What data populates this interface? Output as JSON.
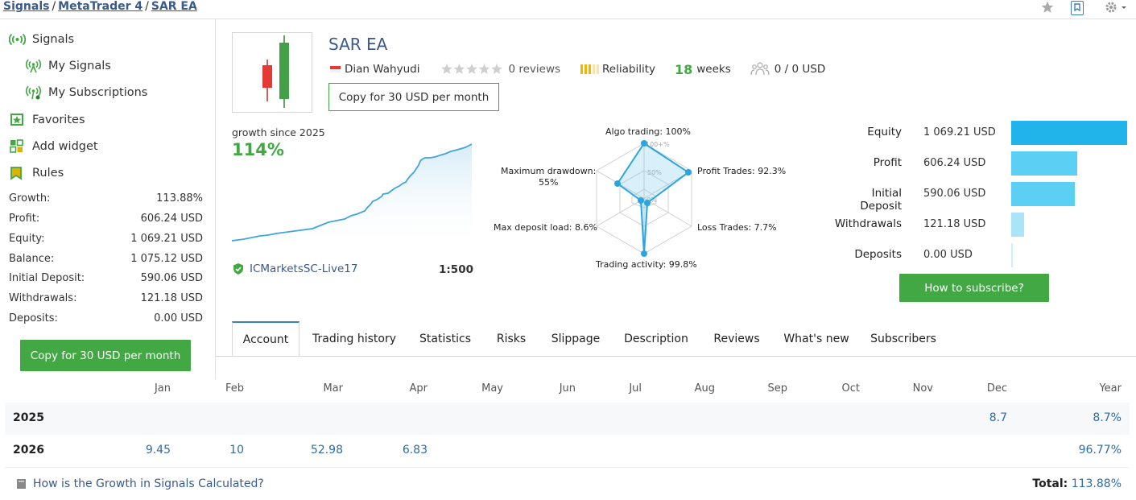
{
  "breadcrumb": [
    "Signals",
    "MetaTrader 4",
    "SAR EA"
  ],
  "header_icons": [
    "star-icon",
    "bookmark-icon",
    "gear-icon"
  ],
  "sidebar": {
    "nav": [
      {
        "label": "Signals",
        "icon": "signals-icon"
      },
      {
        "label": "My Signals",
        "icon": "my-signals-icon"
      },
      {
        "label": "My Subscriptions",
        "icon": "my-subscriptions-icon"
      },
      {
        "label": "Favorites",
        "icon": "favorites-icon"
      },
      {
        "label": "Add widget",
        "icon": "add-widget-icon"
      },
      {
        "label": "Rules",
        "icon": "rules-icon"
      }
    ],
    "stats": [
      {
        "label": "Growth:",
        "value": "113.88%"
      },
      {
        "label": "Profit:",
        "value": "606.24 USD"
      },
      {
        "label": "Equity:",
        "value": "1 069.21 USD"
      },
      {
        "label": "Balance:",
        "value": "1 075.12 USD"
      },
      {
        "label": "Initial Deposit:",
        "value": "590.06 USD"
      },
      {
        "label": "Withdrawals:",
        "value": "121.18 USD"
      },
      {
        "label": "Deposits:",
        "value": "0.00 USD"
      }
    ],
    "copy_button": "Copy for 30 USD per month"
  },
  "signal": {
    "title": "SAR EA",
    "author": "Dian Wahyudi",
    "rating_stars": 0,
    "reviews": "0 reviews",
    "reliability": "Reliability",
    "weeks_num": "18",
    "weeks_label": "weeks",
    "subscribers": "0 / 0 USD",
    "copy_button": "Copy for 30 USD per month"
  },
  "growth": {
    "label": "growth since 2025",
    "value": "114%",
    "broker": "ICMarketsSC-Live17",
    "leverage": "1:500"
  },
  "radar": {
    "axes": [
      {
        "label": "Algo trading: 100%",
        "value": 100
      },
      {
        "label": "Profit Trades: 92.3%",
        "value": 92.3
      },
      {
        "label": "Loss Trades: 7.7%",
        "value": 7.7
      },
      {
        "label": "Trading activity: 99.8%",
        "value": 99.8
      },
      {
        "label": "Max deposit load: 8.6%",
        "value": 8.6
      },
      {
        "label": "Maximum drawdown:",
        "label2": "55%",
        "value": 55
      }
    ],
    "ring_labels": [
      "100+%",
      "50%",
      "0%"
    ]
  },
  "balance_bars": [
    {
      "label": "Equity",
      "value": "1 069.21 USD",
      "amount": 1069.21,
      "color": "#20b4ea"
    },
    {
      "label": "Profit",
      "value": "606.24 USD",
      "amount": 606.24,
      "color": "#5ccff5"
    },
    {
      "label": "Initial Deposit",
      "value": "590.06 USD",
      "amount": 590.06,
      "color": "#5ccff5"
    },
    {
      "label": "Withdrawals",
      "value": "121.18 USD",
      "amount": 121.18,
      "color": "#a9e4f8"
    },
    {
      "label": "Deposits",
      "value": "0.00 USD",
      "amount": 0,
      "color": "#d2eef8"
    }
  ],
  "subscribe_button": "How to subscribe?",
  "tabs": [
    "Account",
    "Trading history",
    "Statistics",
    "Risks",
    "Slippage",
    "Description",
    "Reviews",
    "What's new",
    "Subscribers"
  ],
  "active_tab": "Account",
  "monthly": {
    "columns": [
      "Jan",
      "Feb",
      "Mar",
      "Apr",
      "May",
      "Jun",
      "Jul",
      "Aug",
      "Sep",
      "Oct",
      "Nov",
      "Dec",
      "Year"
    ],
    "rows": [
      {
        "year": "2025",
        "cells": [
          "",
          "",
          "",
          "",
          "",
          "",
          "",
          "",
          "",
          "",
          "",
          "8.7",
          "8.7%"
        ]
      },
      {
        "year": "2026",
        "cells": [
          "9.45",
          "10",
          "52.98",
          "6.83",
          "",
          "",
          "",
          "",
          "",
          "",
          "",
          "",
          "96.77%"
        ]
      }
    ],
    "help_link": "How is the Growth in Signals Calculated?",
    "total_label": "Total:",
    "total_value": "113.88%"
  },
  "colors": {
    "accent": "#41a843",
    "link": "#3a5a8c",
    "value_blue": "#2d6ca6",
    "chart_line": "#3fa6dc"
  }
}
